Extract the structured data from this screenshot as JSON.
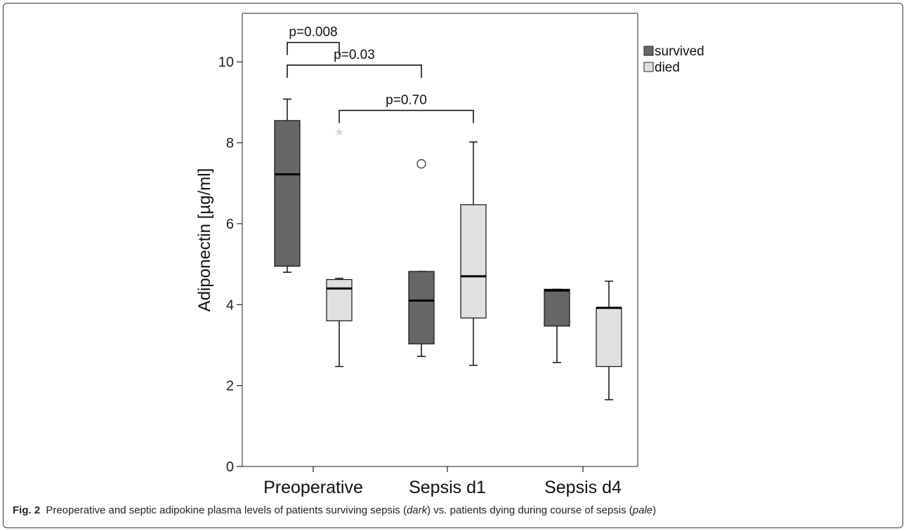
{
  "chart_data": {
    "type": "box",
    "ylabel": "Adiponectin [µg/ml]",
    "xlabel": "",
    "ylim": [
      0,
      11.2
    ],
    "yticks": [
      0,
      2,
      4,
      6,
      8,
      10
    ],
    "ytick_labels": [
      "0",
      "2",
      "4",
      "6",
      "8",
      "10"
    ],
    "categories": [
      "Preoperative",
      "Sepsis d1",
      "Sepsis d4"
    ],
    "legend_position": "top-right",
    "grid": false,
    "series": [
      {
        "name": "survived",
        "color": "#666666",
        "boxes": [
          {
            "category": "Preoperative",
            "min": 4.8,
            "q1": 4.95,
            "median": 7.22,
            "q3": 8.55,
            "max": 9.08
          },
          {
            "category": "Sepsis d1",
            "min": 2.72,
            "q1": 3.03,
            "median": 4.1,
            "q3": 4.82,
            "max": 4.82
          },
          {
            "category": "Sepsis d4",
            "min": 2.57,
            "q1": 3.47,
            "median": 4.35,
            "q3": 4.38,
            "max": 4.38
          }
        ]
      },
      {
        "name": "died",
        "color": "#e0e0e0",
        "boxes": [
          {
            "category": "Preoperative",
            "min": 2.47,
            "q1": 3.6,
            "median": 4.4,
            "q3": 4.62,
            "max": 4.65
          },
          {
            "category": "Sepsis d1",
            "min": 2.5,
            "q1": 3.67,
            "median": 4.7,
            "q3": 6.47,
            "max": 8.02
          },
          {
            "category": "Sepsis d4",
            "min": 1.65,
            "q1": 2.47,
            "median": 3.92,
            "q3": 3.92,
            "max": 4.58
          }
        ]
      }
    ],
    "outliers": [
      {
        "series": "died",
        "category": "Preoperative",
        "value": 8.28,
        "marker": "star"
      },
      {
        "series": "survived",
        "category": "Sepsis d1",
        "value": 7.48,
        "marker": "circle"
      }
    ],
    "annotations": [
      {
        "text": "p=0.008",
        "from": "survived Preoperative",
        "to": "died Preoperative",
        "level": 10.48
      },
      {
        "text": "p=0.03",
        "from": "survived Preoperative",
        "to": "survived Sepsis d1",
        "level": 9.92
      },
      {
        "text": "p=0.70",
        "from": "died Preoperative",
        "to": "died Sepsis d1",
        "level": 8.8
      }
    ]
  },
  "caption": {
    "label": "Fig. 2",
    "text_1": " Preoperative and septic adipokine plasma levels of patients surviving sepsis (",
    "italic_1": "dark",
    "text_2": ") vs. patients dying during course of sepsis (",
    "italic_2": "pale",
    "text_3": ")"
  }
}
